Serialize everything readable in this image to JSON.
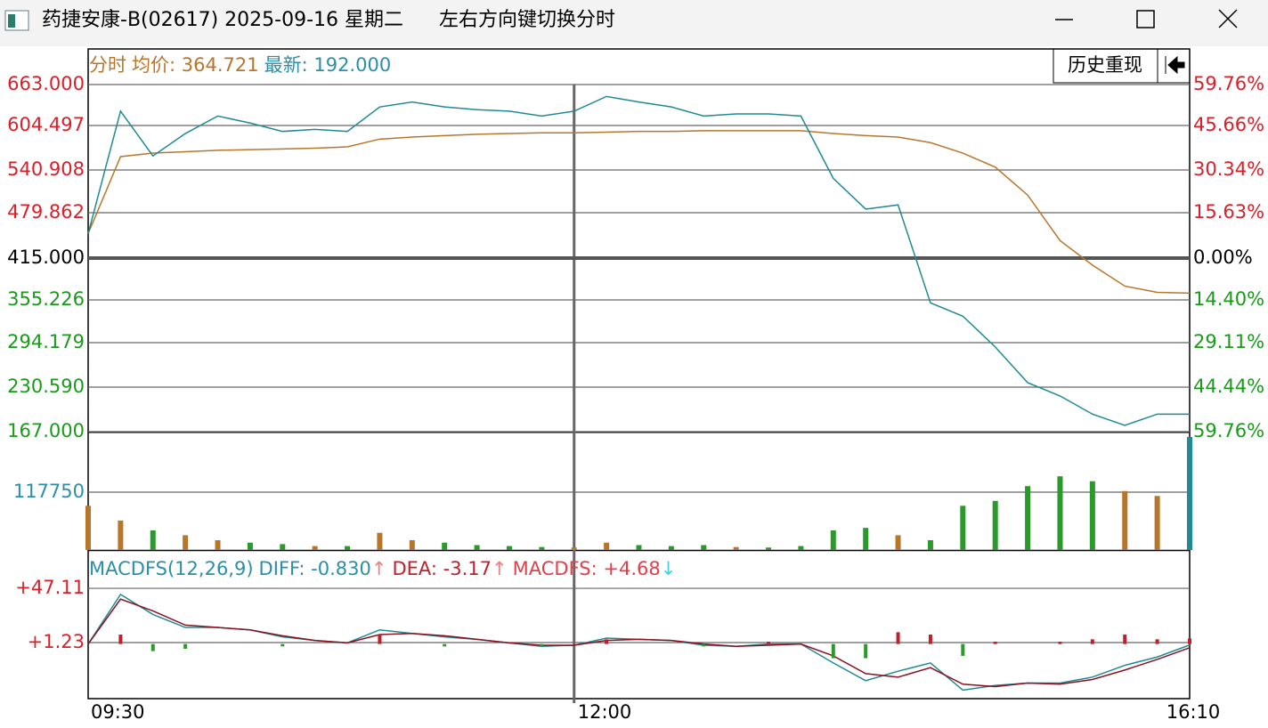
{
  "window": {
    "title": "药捷安康-B(02617) 2025-09-16 星期二",
    "hint": "左右方向键切换分时",
    "button": "历史重现"
  },
  "chart_data": [
    {
      "type": "line",
      "header": [
        {
          "text": "分时",
          "color": "#b8762b"
        },
        {
          "text": "均价: 364.721",
          "color": "#b8762b"
        },
        {
          "text": "最新: 192.000",
          "color": "#2a8fa8"
        }
      ],
      "x": [
        0,
        10,
        20,
        30,
        40,
        50,
        60,
        70,
        80,
        90,
        100,
        110,
        120,
        130,
        140,
        150,
        160,
        170,
        180,
        190,
        200,
        210,
        220,
        230,
        240,
        250,
        260,
        270,
        280,
        290,
        300,
        310,
        320,
        330,
        340
      ],
      "xlim": [
        0,
        340
      ],
      "xticks": [
        {
          "value": 0,
          "label": "09:30"
        },
        {
          "value": 150,
          "label": "12:00"
        },
        {
          "value": 340,
          "label": "16:10"
        }
      ],
      "series": [
        {
          "color": "#1f8a94",
          "values": [
            450,
            625,
            561,
            593,
            618,
            608,
            596,
            599,
            596,
            631,
            638,
            631,
            627,
            625,
            618,
            625,
            646,
            638,
            631,
            618,
            621,
            621,
            618,
            529,
            485,
            491,
            351,
            332,
            288,
            237,
            218,
            192,
            176,
            192,
            192
          ]
        },
        {
          "color": "#b8762b",
          "values": [
            450,
            560,
            565,
            567,
            569,
            570,
            571,
            572,
            574,
            585,
            588,
            590,
            592,
            593,
            594,
            594,
            595,
            596,
            596,
            597,
            597,
            597,
            597,
            593,
            590,
            588,
            580,
            565,
            545,
            505,
            440,
            405,
            375,
            366,
            365
          ]
        }
      ],
      "ylim": [
        167,
        663
      ],
      "yticks": [
        {
          "value": 663,
          "label": "663.000"
        },
        {
          "value": 604.497,
          "label": "604.497"
        },
        {
          "value": 540.908,
          "label": "540.908"
        },
        {
          "value": 479.862,
          "label": "479.862"
        },
        {
          "value": 415,
          "label": "415.000"
        },
        {
          "value": 355.226,
          "label": "355.226"
        },
        {
          "value": 294.179,
          "label": "294.179"
        },
        {
          "value": 230.59,
          "label": "230.590"
        },
        {
          "value": 167,
          "label": "167.000"
        }
      ],
      "y2lim": [
        -59.76,
        59.76
      ],
      "y2ticks": [
        {
          "value": 59.76,
          "label": "59.76%"
        },
        {
          "value": 45.66,
          "label": "45.66%"
        },
        {
          "value": 30.34,
          "label": "30.34%"
        },
        {
          "value": 15.63,
          "label": "15.63%"
        },
        {
          "value": 0,
          "label": "0.00%"
        },
        {
          "value": -14.4,
          "label": "14.40%"
        },
        {
          "value": -29.11,
          "label": "29.11%"
        },
        {
          "value": -44.44,
          "label": "44.44%"
        },
        {
          "value": -59.76,
          "label": "59.76%"
        }
      ],
      "grid": true
    },
    {
      "type": "bar",
      "values": [
        90000,
        60000,
        40000,
        30000,
        20000,
        15000,
        12000,
        8000,
        8000,
        35000,
        20000,
        15000,
        10000,
        8000,
        6000,
        5000,
        15000,
        10000,
        8000,
        10000,
        6000,
        5000,
        8000,
        40000,
        45000,
        30000,
        20000,
        90000,
        100000,
        130000,
        150000,
        140000,
        120000,
        110000,
        230000
      ],
      "colors": [
        "#b8762b",
        "#b8762b",
        "#2a9a2a",
        "#b8762b",
        "#b8762b",
        "#2a9a2a",
        "#2a9a2a",
        "#b8762b",
        "#2a9a2a",
        "#b8762b",
        "#b8762b",
        "#2a9a2a",
        "#2a9a2a",
        "#2a9a2a",
        "#2a9a2a",
        "#b8762b",
        "#b8762b",
        "#2a9a2a",
        "#2a9a2a",
        "#2a9a2a",
        "#b8762b",
        "#2a9a2a",
        "#2a9a2a",
        "#2a9a2a",
        "#2a9a2a",
        "#b8762b",
        "#2a9a2a",
        "#2a9a2a",
        "#2a9a2a",
        "#2a9a2a",
        "#2a9a2a",
        "#2a9a2a",
        "#b8762b",
        "#b8762b",
        "#1f8a94"
      ],
      "ylim": [
        0,
        239100
      ],
      "yticks": [
        117750
      ],
      "grid": true
    },
    {
      "type": "macd",
      "header": [
        {
          "text": "MACDFS(12,26,9)",
          "color": "#2a8fa8"
        },
        {
          "text": "DIFF: -0.830",
          "color": "#2a8fa8"
        },
        {
          "text": "↑",
          "color": "#f08080"
        },
        {
          "text": "DEA: -3.17",
          "color": "#c0202a"
        },
        {
          "text": "↑",
          "color": "#f08080"
        },
        {
          "text": "MACDFS: +4.68",
          "color": "#e0404a"
        },
        {
          "text": "↓",
          "color": "#40d0e0"
        }
      ],
      "series": [
        {
          "name": "DIFF",
          "color": "#1f8a94",
          "values": [
            0,
            42,
            25,
            14,
            14,
            12,
            6,
            3,
            1,
            12,
            9,
            6,
            4,
            1,
            -2,
            -1,
            5,
            4,
            3,
            -1,
            -2,
            0,
            0,
            -16,
            -31,
            -23,
            -16,
            -39,
            -35,
            -33,
            -33,
            -28,
            -18,
            -11,
            -0.83
          ]
        },
        {
          "name": "DEA",
          "color": "#8b1020",
          "values": [
            0,
            38,
            28,
            16,
            14,
            12,
            7,
            3,
            1,
            8,
            9,
            7,
            4,
            1,
            -1,
            -1,
            3,
            4,
            3,
            0,
            -2,
            -1,
            0,
            -10,
            -25,
            -28,
            -20,
            -34,
            -36,
            -33,
            -34,
            -30,
            -22,
            -13,
            -3.17
          ]
        },
        {
          "name": "MACDFS",
          "values": [
            0,
            8,
            -6,
            -4,
            0,
            0,
            -2,
            0,
            0,
            8,
            0,
            -2,
            0,
            0,
            -2,
            0,
            4,
            0,
            0,
            -2,
            0,
            2,
            0,
            -12,
            -12,
            10,
            8,
            -10,
            2,
            0,
            2,
            4,
            8,
            4,
            4.68
          ],
          "up_color": "#c0202a",
          "down_color": "#2a9a2a"
        }
      ],
      "ylim": [
        -46.2,
        78.8
      ],
      "yticks": [
        {
          "value": 47.11,
          "label": "+47.11"
        },
        {
          "value": 1.23,
          "label": "+1.23"
        }
      ],
      "grid": true
    }
  ]
}
